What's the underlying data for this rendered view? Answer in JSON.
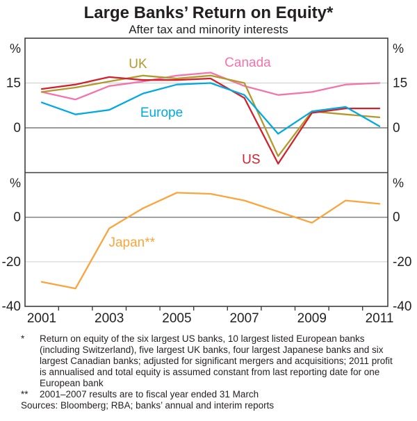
{
  "title": "Large Banks’ Return on Equity*",
  "subtitle": "After tax and minority interests",
  "chart_data": {
    "type": "line",
    "title": "Large Banks’ Return on Equity*",
    "subtitle": "After tax and minority interests",
    "x": [
      2001,
      2002,
      2003,
      2004,
      2005,
      2006,
      2007,
      2008,
      2009,
      2010,
      2011
    ],
    "x_axis_labels": [
      "2001",
      "2003",
      "2005",
      "2007",
      "2009",
      "2011"
    ],
    "panels": [
      {
        "unit": "%",
        "ylim": [
          -15,
          30
        ],
        "y_axis_labels": [
          {
            "text": "15",
            "value": 15
          },
          {
            "text": "0",
            "value": 0
          }
        ],
        "light_gridlines": [
          15
        ],
        "dark_gridlines": [
          0
        ],
        "series": [
          {
            "name": "Canada",
            "color": "#f573ab",
            "values": [
              12,
              9.5,
              14,
              15.5,
              17.5,
              18.5,
              14,
              11,
              12,
              14.5,
              15
            ],
            "label": {
              "text": "Canada",
              "x_year": 2007.1,
              "value": 20.5
            }
          },
          {
            "name": "UK",
            "color": "#b2992b",
            "values": [
              12,
              13.5,
              15.5,
              17.5,
              16.5,
              17.5,
              15,
              -9.5,
              5.5,
              4.5,
              3.5
            ],
            "label": {
              "text": "UK",
              "x_year": 2003.85,
              "value": 20
            }
          },
          {
            "name": "US",
            "color": "#d0212d",
            "values": [
              13,
              14.5,
              17,
              16,
              16,
              16.5,
              10,
              -12,
              5,
              6.5,
              6.5
            ],
            "label": {
              "text": "US",
              "x_year": 2007.2,
              "value": -12
            }
          },
          {
            "name": "Europe",
            "color": "#00a9e0",
            "values": [
              8.5,
              4.5,
              6,
              11.5,
              14.5,
              15,
              11,
              -2,
              5.5,
              7,
              0.5
            ],
            "label": {
              "text": "Europe",
              "x_year": 2004.55,
              "value": 3.7
            }
          }
        ]
      },
      {
        "unit": "%",
        "ylim": [
          -40,
          20
        ],
        "y_axis_labels": [
          {
            "text": "0",
            "value": 0
          },
          {
            "text": "-20",
            "value": -20
          },
          {
            "text": "-40",
            "value": -40
          }
        ],
        "light_gridlines": [
          -20
        ],
        "dark_gridlines": [
          0
        ],
        "series": [
          {
            "name": "Japan",
            "color": "#faa43c",
            "values": [
              -29,
              -32,
              -5,
              4,
              11,
              10.5,
              7.5,
              2.5,
              -2.5,
              7.5,
              6
            ],
            "label": {
              "text": "Japan**",
              "x_year": 2003.67,
              "value": -13.2
            }
          }
        ]
      }
    ]
  },
  "footnotes": [
    {
      "marker": "*",
      "text": "Return on equity of the six largest US banks, 10 largest listed European banks (including Switzerland), five largest UK banks, four largest Japanese banks and six largest Canadian banks; adjusted for significant mergers and acquisitions; 2011 profit is annualised and total equity is assumed constant from last reporting date for one European bank"
    },
    {
      "marker": "**",
      "text": "2001–2007 results are to fiscal year ended 31 March"
    }
  ],
  "sources": "Sources: Bloomberg; RBA; banks’ annual and interim reports"
}
